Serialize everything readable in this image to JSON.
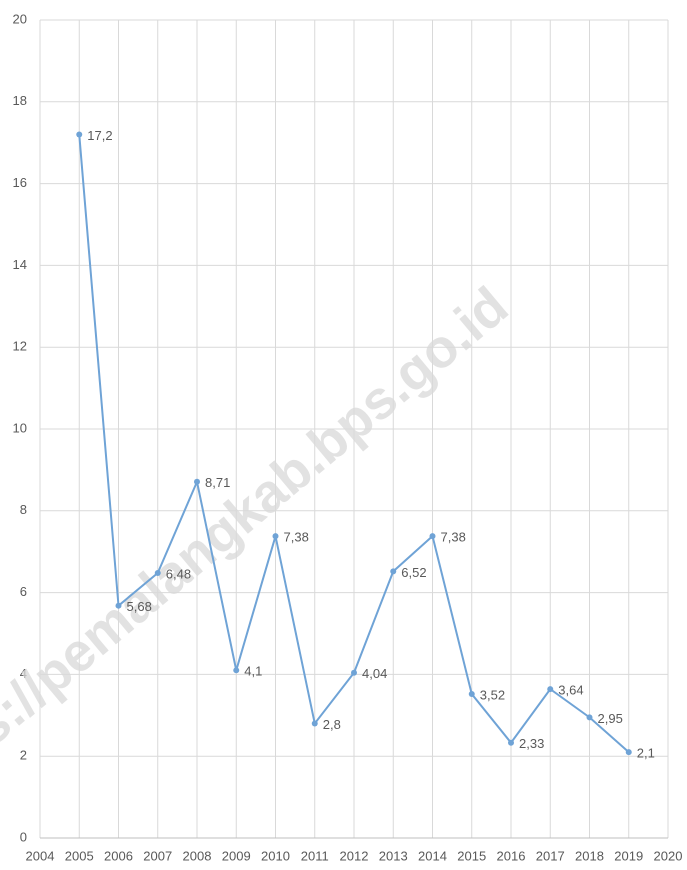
{
  "chart_data": {
    "type": "line",
    "watermark": "ps://pemalangkab.bps.go.id",
    "x": [
      2005,
      2006,
      2007,
      2008,
      2009,
      2010,
      2011,
      2012,
      2013,
      2014,
      2015,
      2016,
      2017,
      2018,
      2019
    ],
    "values": [
      17.2,
      5.68,
      6.48,
      8.71,
      4.1,
      7.38,
      2.8,
      4.04,
      6.52,
      7.38,
      3.52,
      2.33,
      3.64,
      2.95,
      2.1
    ],
    "value_labels": [
      "17,2",
      "5,68",
      "6,48",
      "8,71",
      "4,1",
      "7,38",
      "2,8",
      "4,04",
      "6,52",
      "7,38",
      "3,52",
      "2,33",
      "3,64",
      "2,95",
      "2,1"
    ],
    "color": "#6fa3d6",
    "xlim": [
      2004,
      2020
    ],
    "xticks": [
      2004,
      2005,
      2006,
      2007,
      2008,
      2009,
      2010,
      2011,
      2012,
      2013,
      2014,
      2015,
      2016,
      2017,
      2018,
      2019,
      2020
    ],
    "ylim": [
      0,
      20
    ],
    "yticks": [
      0,
      2,
      4,
      6,
      8,
      10,
      12,
      14,
      16,
      18,
      20
    ],
    "grid": true
  }
}
